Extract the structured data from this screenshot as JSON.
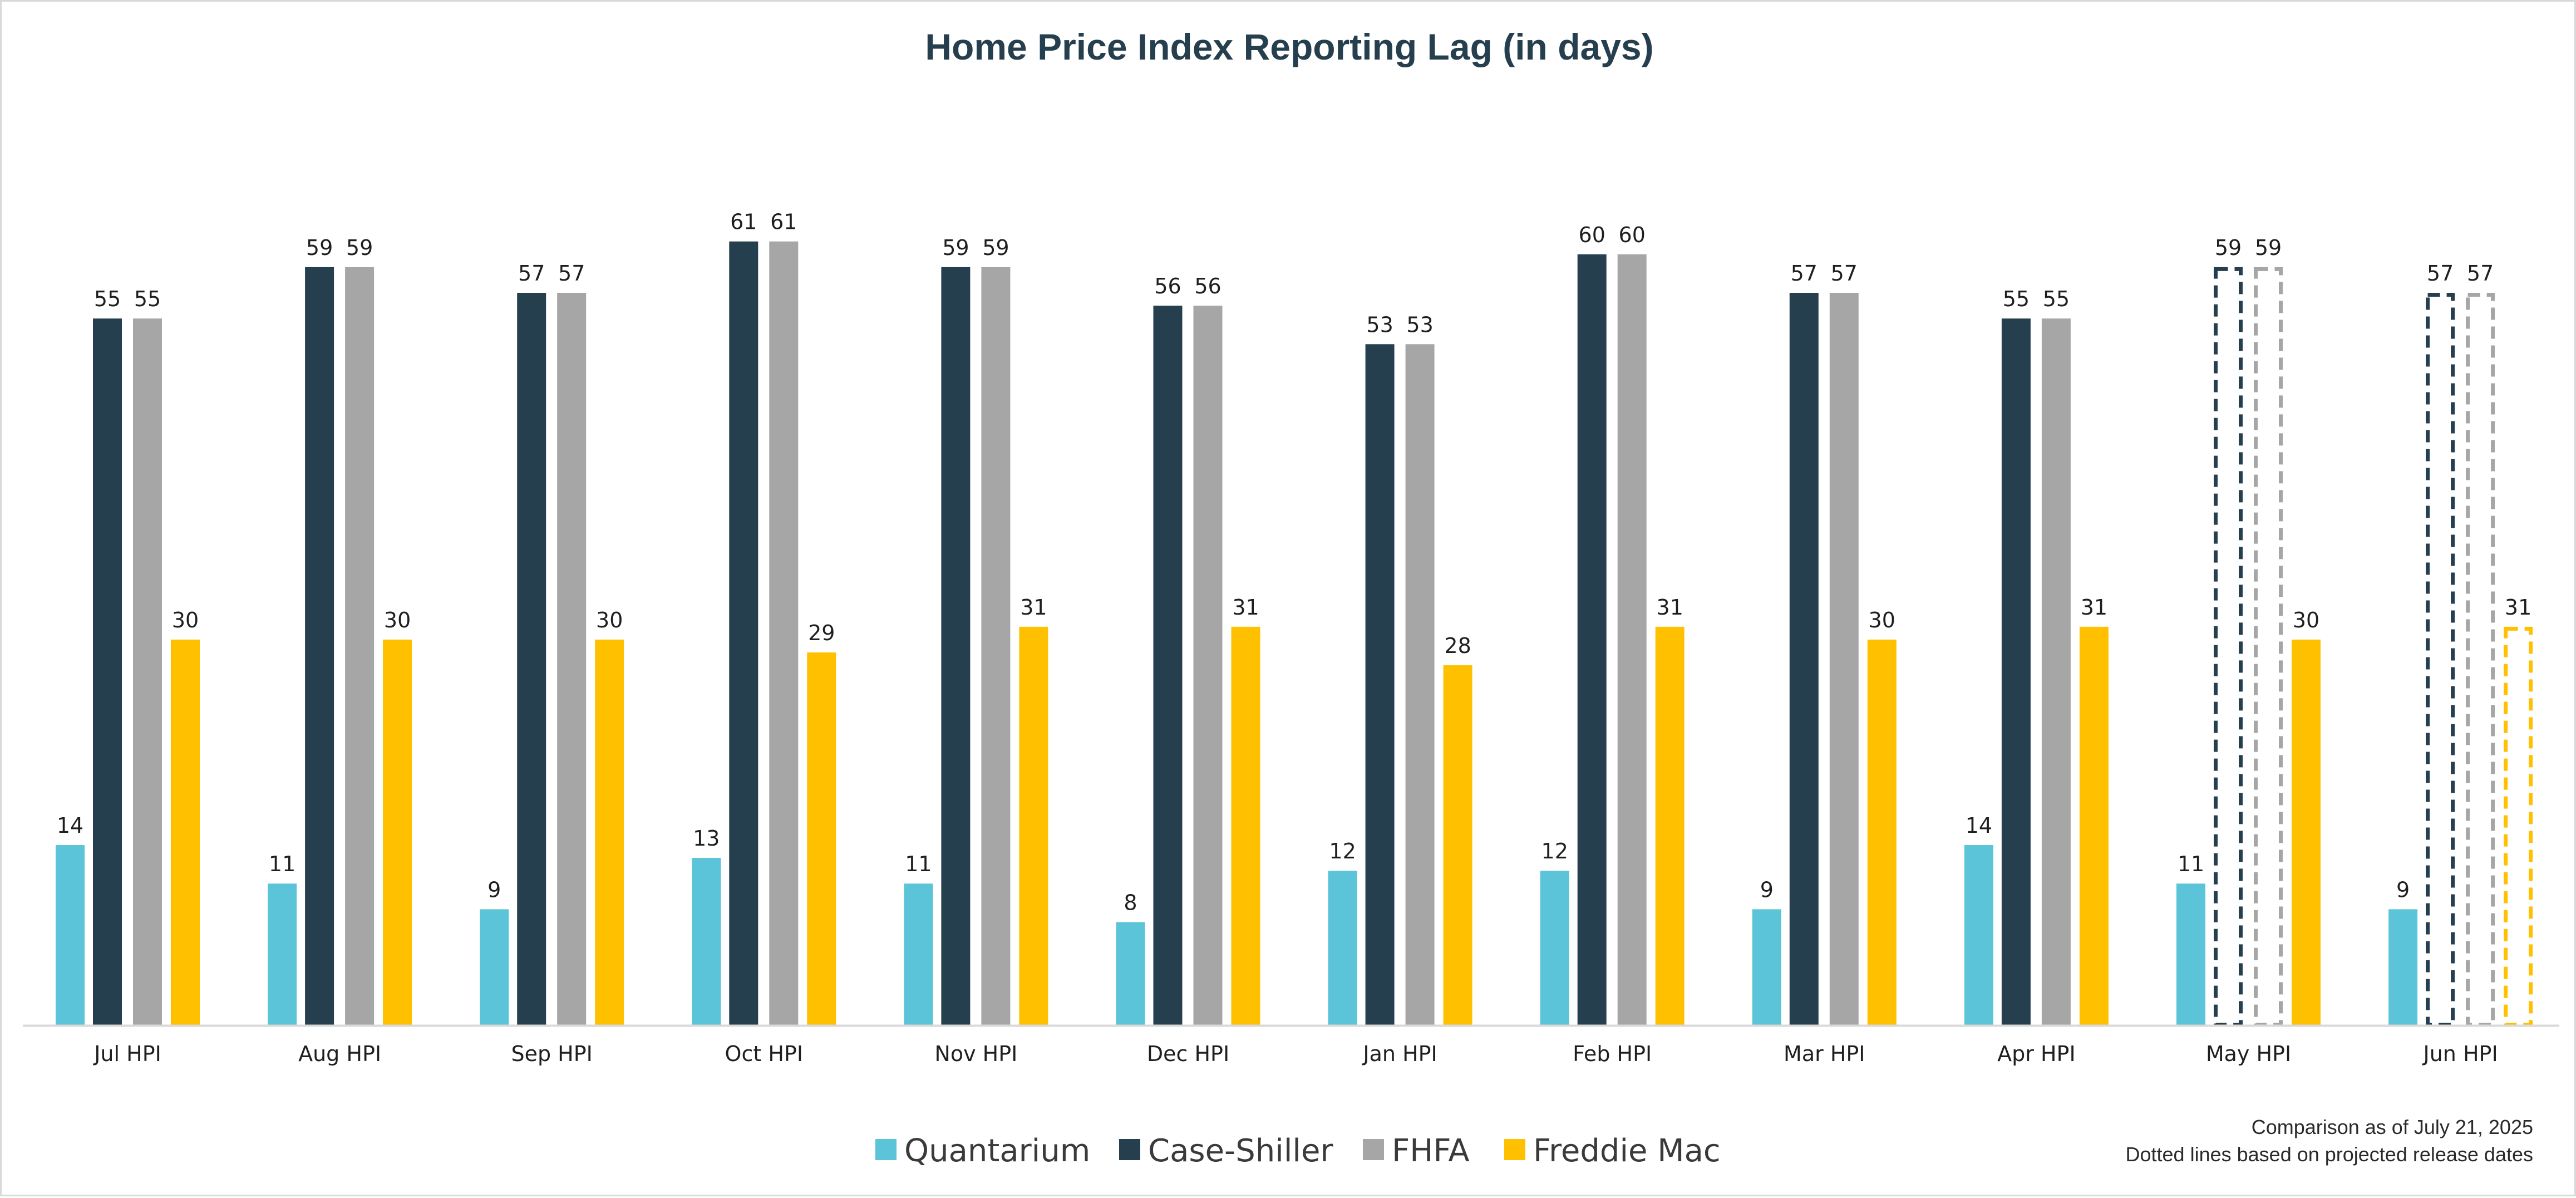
{
  "chart_data": {
    "type": "bar",
    "title": "Home Price Index Reporting Lag (in days)",
    "xlabel": "",
    "ylabel": "",
    "ylim": [
      0,
      70
    ],
    "grid": false,
    "legend_position": "bottom",
    "categories": [
      "Jul HPI",
      "Aug HPI",
      "Sep HPI",
      "Oct HPI",
      "Nov HPI",
      "Dec HPI",
      "Jan HPI",
      "Feb HPI",
      "Mar HPI",
      "Apr HPI",
      "May HPI",
      "Jun HPI"
    ],
    "series": [
      {
        "name": "Quantarium",
        "color": "#5bc4d8",
        "values": [
          14,
          11,
          9,
          13,
          11,
          8,
          12,
          12,
          9,
          14,
          11,
          9
        ],
        "projected": [
          false,
          false,
          false,
          false,
          false,
          false,
          false,
          false,
          false,
          false,
          false,
          false
        ]
      },
      {
        "name": "Case-Shiller",
        "color": "#263f4f",
        "values": [
          55,
          59,
          57,
          61,
          59,
          56,
          53,
          60,
          57,
          55,
          59,
          57
        ],
        "projected": [
          false,
          false,
          false,
          false,
          false,
          false,
          false,
          false,
          false,
          false,
          true,
          true
        ]
      },
      {
        "name": "FHFA",
        "color": "#a6a6a6",
        "values": [
          55,
          59,
          57,
          61,
          59,
          56,
          53,
          60,
          57,
          55,
          59,
          57
        ],
        "projected": [
          false,
          false,
          false,
          false,
          false,
          false,
          false,
          false,
          false,
          false,
          true,
          true
        ]
      },
      {
        "name": "Freddie Mac",
        "color": "#ffc000",
        "values": [
          30,
          30,
          30,
          29,
          31,
          31,
          28,
          31,
          30,
          31,
          30,
          31
        ],
        "projected": [
          false,
          false,
          false,
          false,
          false,
          false,
          false,
          false,
          false,
          false,
          false,
          true
        ]
      }
    ],
    "annotations": [
      "Comparison as of July 21, 2025",
      "Dotted lines based on projected release dates"
    ]
  },
  "colors": {
    "axis": "#d9d9d9",
    "title": "#263f4f",
    "background": "#ffffff"
  }
}
